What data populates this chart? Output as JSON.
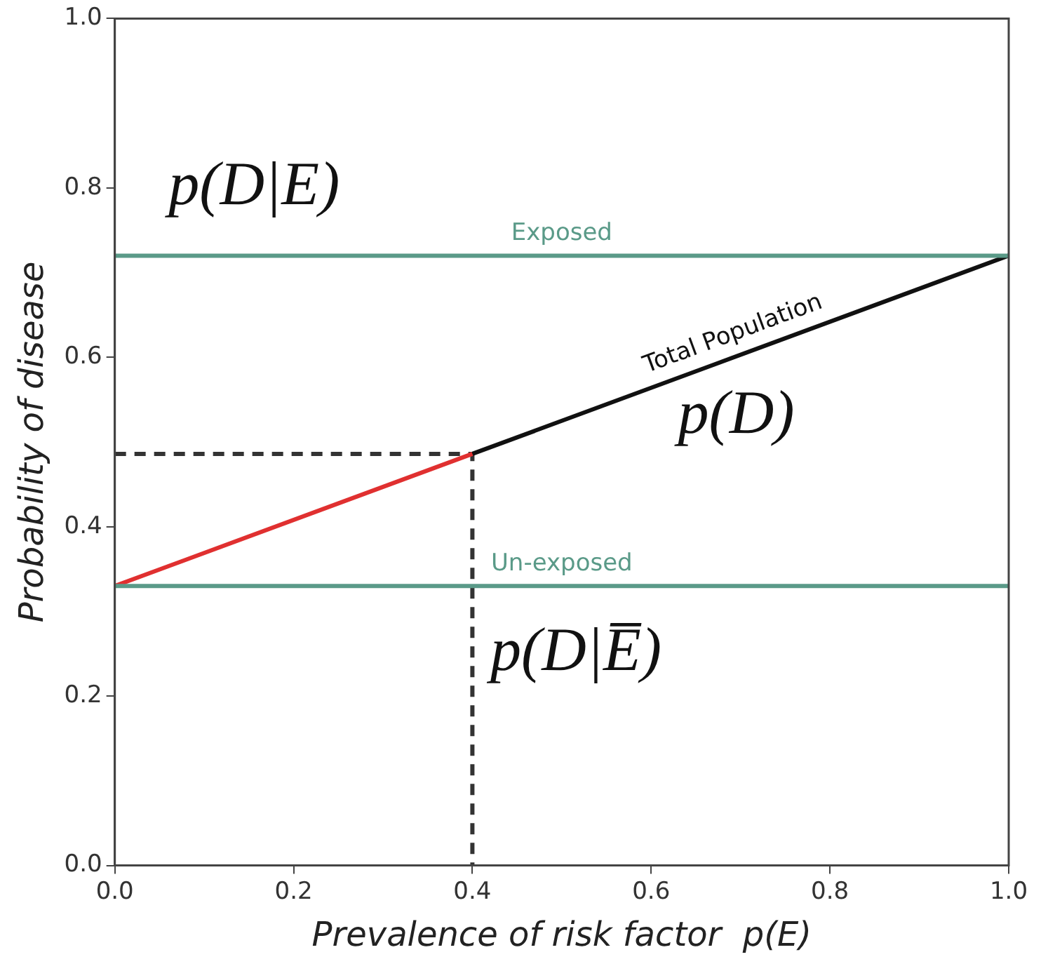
{
  "chart_data": {
    "type": "line",
    "xlabel": "Prevalence of risk factor  p(E)",
    "ylabel": "Probability of disease",
    "series": [
      {
        "name": "Exposed",
        "color": "#5a9a88",
        "x": [
          0,
          1
        ],
        "values": [
          0.72,
          0.72
        ]
      },
      {
        "name": "Un-exposed",
        "color": "#5a9a88",
        "x": [
          0,
          1
        ],
        "values": [
          0.33,
          0.33
        ]
      },
      {
        "color": "#e03030",
        "x": [
          0,
          0.4
        ],
        "values": [
          0.33,
          0.486
        ]
      },
      {
        "name": "Total Population",
        "color": "#111111",
        "x": [
          0.4,
          1
        ],
        "values": [
          0.486,
          0.72
        ]
      },
      {
        "color": "#333333",
        "x": [
          0,
          0.4,
          0.4
        ],
        "values": [
          0.486,
          0.486,
          0
        ],
        "line_style": "dashed"
      }
    ],
    "xlim": [
      0,
      1
    ],
    "ylim": [
      0,
      1
    ],
    "xticks": [
      {
        "value": 0,
        "label": "0.0"
      },
      0.2,
      0.4,
      0.6,
      0.8,
      {
        "value": 1,
        "label": "1.0"
      }
    ],
    "yticks": [
      {
        "value": 0,
        "label": "0.0"
      },
      0.2,
      0.4,
      0.6,
      0.8,
      {
        "value": 1,
        "label": "1.0"
      }
    ],
    "grid": false,
    "legend": false,
    "marker": "none",
    "line_style": "solid",
    "annotations": [
      "p(D|E)",
      "p(D)",
      "p(D|E̅)"
    ]
  }
}
